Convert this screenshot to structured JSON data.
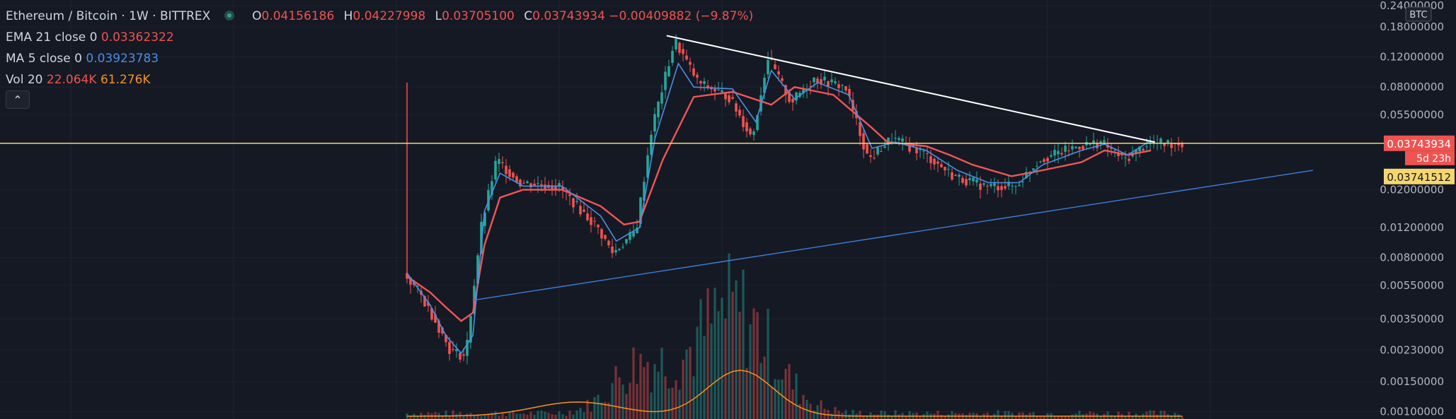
{
  "header": {
    "symbol": "Ethereum / Bitcoin",
    "interval": "1W",
    "exchange": "BITTREX",
    "ohlc": {
      "o_label": "O",
      "o": "0.04156186",
      "h_label": "H",
      "h": "0.04227998",
      "l_label": "L",
      "l": "0.03705100",
      "c_label": "C",
      "c": "0.03743934",
      "change": "−0.00409882 (−9.87%)"
    }
  },
  "indicators": [
    {
      "label": "EMA 21 close 0",
      "value": "0.03362322",
      "color": "#ef5350"
    },
    {
      "label": "MA 5 close 0",
      "value": "0.03923783",
      "color": "#4a90e2"
    },
    {
      "label": "Vol 20",
      "value": "22.064K",
      "value2": "61.276K",
      "color": "#ef5350",
      "color2": "#f7931a"
    }
  ],
  "collapse_icon": "chevron-up-icon",
  "price_axis": {
    "currency_badge": "BTC",
    "ticks": [
      "0.24000000",
      "0.18000000",
      "0.12000000",
      "0.08000000",
      "0.05500000",
      "0.02000000",
      "0.01200000",
      "0.00800000",
      "0.00550000",
      "0.00350000",
      "0.00230000",
      "0.00150000",
      "0.00100000"
    ],
    "last_price": "0.03743934",
    "countdown": "5d 23h",
    "ma_price": "0.03741512"
  },
  "colors": {
    "background": "#151924",
    "up": "#26a69a",
    "down": "#ef5350",
    "ema": "#f05656",
    "ma": "#4a90e2",
    "vol_ma": "#f7931a",
    "horizontal_line": "#f5d76e",
    "resistance": "#ffffff",
    "support": "#3b7fd6"
  },
  "chart_data": {
    "type": "line",
    "yscale": "log",
    "ylim": [
      0.00095,
      0.24
    ],
    "series": [
      {
        "name": "EMA 21 close 0",
        "points": [
          [
            0.0,
            0.0062
          ],
          [
            0.03,
            0.005
          ],
          [
            0.05,
            0.0041
          ],
          [
            0.07,
            0.0034
          ],
          [
            0.085,
            0.0038
          ],
          [
            0.1,
            0.0095
          ],
          [
            0.12,
            0.018
          ],
          [
            0.15,
            0.02
          ],
          [
            0.2,
            0.02
          ],
          [
            0.25,
            0.016
          ],
          [
            0.28,
            0.0125
          ],
          [
            0.3,
            0.013
          ],
          [
            0.33,
            0.03
          ],
          [
            0.37,
            0.07
          ],
          [
            0.42,
            0.075
          ],
          [
            0.47,
            0.063
          ],
          [
            0.5,
            0.08
          ],
          [
            0.55,
            0.072
          ],
          [
            0.6,
            0.046
          ],
          [
            0.62,
            0.038
          ],
          [
            0.67,
            0.036
          ],
          [
            0.7,
            0.032
          ],
          [
            0.73,
            0.028
          ],
          [
            0.78,
            0.024
          ],
          [
            0.82,
            0.026
          ],
          [
            0.87,
            0.029
          ],
          [
            0.9,
            0.034
          ],
          [
            0.93,
            0.032
          ],
          [
            0.96,
            0.034
          ]
        ]
      },
      {
        "name": "MA 5 close 0",
        "points": [
          [
            0.0,
            0.0065
          ],
          [
            0.03,
            0.0042
          ],
          [
            0.05,
            0.0028
          ],
          [
            0.07,
            0.0022
          ],
          [
            0.085,
            0.0028
          ],
          [
            0.1,
            0.015
          ],
          [
            0.12,
            0.025
          ],
          [
            0.15,
            0.021
          ],
          [
            0.2,
            0.021
          ],
          [
            0.25,
            0.014
          ],
          [
            0.27,
            0.01
          ],
          [
            0.3,
            0.012
          ],
          [
            0.32,
            0.04
          ],
          [
            0.35,
            0.11
          ],
          [
            0.37,
            0.08
          ],
          [
            0.42,
            0.078
          ],
          [
            0.45,
            0.05
          ],
          [
            0.47,
            0.1
          ],
          [
            0.5,
            0.068
          ],
          [
            0.53,
            0.085
          ],
          [
            0.57,
            0.072
          ],
          [
            0.6,
            0.035
          ],
          [
            0.63,
            0.038
          ],
          [
            0.67,
            0.034
          ],
          [
            0.71,
            0.026
          ],
          [
            0.75,
            0.022
          ],
          [
            0.79,
            0.022
          ],
          [
            0.82,
            0.028
          ],
          [
            0.87,
            0.034
          ],
          [
            0.9,
            0.037
          ],
          [
            0.93,
            0.032
          ],
          [
            0.96,
            0.039
          ]
        ]
      },
      {
        "name": "Candles (close proxy)",
        "points": [
          [
            0.0,
            0.0065
          ],
          [
            0.02,
            0.005
          ],
          [
            0.04,
            0.0035
          ],
          [
            0.06,
            0.0023
          ],
          [
            0.08,
            0.0021
          ],
          [
            0.1,
            0.012
          ],
          [
            0.12,
            0.03
          ],
          [
            0.15,
            0.022
          ],
          [
            0.2,
            0.021
          ],
          [
            0.25,
            0.012
          ],
          [
            0.27,
            0.0085
          ],
          [
            0.3,
            0.0115
          ],
          [
            0.32,
            0.045
          ],
          [
            0.35,
            0.15
          ],
          [
            0.38,
            0.085
          ],
          [
            0.42,
            0.07
          ],
          [
            0.45,
            0.04
          ],
          [
            0.47,
            0.12
          ],
          [
            0.5,
            0.065
          ],
          [
            0.53,
            0.09
          ],
          [
            0.57,
            0.08
          ],
          [
            0.6,
            0.03
          ],
          [
            0.63,
            0.04
          ],
          [
            0.67,
            0.033
          ],
          [
            0.71,
            0.024
          ],
          [
            0.75,
            0.021
          ],
          [
            0.79,
            0.021
          ],
          [
            0.82,
            0.03
          ],
          [
            0.87,
            0.036
          ],
          [
            0.9,
            0.038
          ],
          [
            0.93,
            0.03
          ],
          [
            0.96,
            0.0374
          ]
        ]
      }
    ],
    "trendlines": [
      {
        "name": "resistance",
        "from": [
          0.335,
          0.16
        ],
        "to": [
          0.965,
          0.038
        ]
      },
      {
        "name": "support",
        "from": [
          0.085,
          0.0045
        ],
        "to": [
          1.0,
          0.026
        ]
      }
    ],
    "horizontal_line": 0.03743934
  }
}
